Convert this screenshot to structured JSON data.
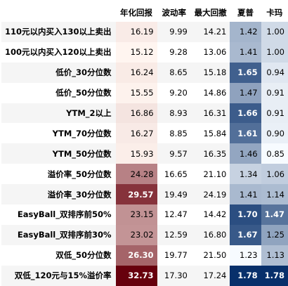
{
  "table": {
    "columns": [
      "",
      "年化回报",
      "波动率",
      "最大回撤",
      "夏普",
      "卡玛"
    ],
    "rows": [
      {
        "label": "110元以内买入130以上卖出",
        "values": [
          "16.19",
          "9.99",
          "14.21",
          "1.42",
          "1.00"
        ]
      },
      {
        "label": "100元以内买入120以上卖出",
        "values": [
          "15.12",
          "9.28",
          "13.06",
          "1.41",
          "1.00"
        ]
      },
      {
        "label": "低价_30分位数",
        "values": [
          "16.24",
          "8.65",
          "15.18",
          "1.65",
          "0.94"
        ]
      },
      {
        "label": "低价_50分位数",
        "values": [
          "15.55",
          "9.20",
          "14.86",
          "1.47",
          "0.91"
        ]
      },
      {
        "label": "YTM_2以上",
        "values": [
          "16.86",
          "8.93",
          "16.31",
          "1.66",
          "0.91"
        ]
      },
      {
        "label": "YTM_70分位数",
        "values": [
          "16.27",
          "8.85",
          "15.84",
          "1.61",
          "0.90"
        ]
      },
      {
        "label": "YTM_50分位数",
        "values": [
          "15.93",
          "9.57",
          "16.35",
          "1.46",
          "0.85"
        ]
      },
      {
        "label": "溢价率_50分位数",
        "values": [
          "24.28",
          "16.65",
          "21.10",
          "1.34",
          "1.06"
        ]
      },
      {
        "label": "溢价率_30分位数",
        "values": [
          "29.57",
          "19.49",
          "24.19",
          "1.41",
          "1.14"
        ]
      },
      {
        "label": "EasyBall_双排序前50%",
        "values": [
          "23.15",
          "12.47",
          "14.42",
          "1.70",
          "1.47"
        ]
      },
      {
        "label": "EasyBall_双排序前30%",
        "values": [
          "23.02",
          "12.59",
          "16.80",
          "1.67",
          "1.25"
        ]
      },
      {
        "label": "双低_50分位数",
        "values": [
          "26.30",
          "19.77",
          "21.50",
          "1.23",
          "1.13"
        ]
      },
      {
        "label": "双低_120元与15%溢价率",
        "values": [
          "32.73",
          "17.30",
          "17.24",
          "1.78",
          "1.78"
        ]
      }
    ],
    "gradients": {
      "年化回报": {
        "low": "#fff5f0",
        "high": "#67000d"
      },
      "夏普": {
        "low": "#f7fbff",
        "high": "#08306b"
      },
      "卡玛": {
        "low": "#f7fbff",
        "high": "#08306b"
      }
    }
  }
}
